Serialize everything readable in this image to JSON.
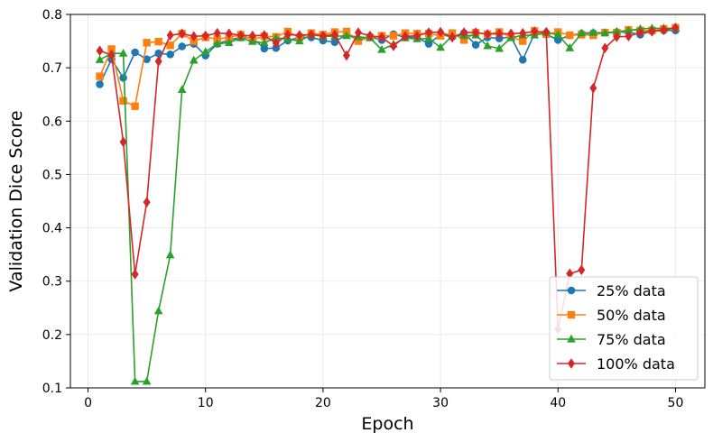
{
  "chart_data": {
    "type": "line",
    "xlabel": "Epoch",
    "ylabel": "Validation Dice Score",
    "xlim": [
      -1.5,
      52.5
    ],
    "ylim": [
      0.1,
      0.8
    ],
    "xticks": [
      0,
      10,
      20,
      30,
      40,
      50
    ],
    "yticks": [
      0.1,
      0.2,
      0.3,
      0.4,
      0.5,
      0.6,
      0.7,
      0.8
    ],
    "grid": true,
    "legend_position": "lower-right",
    "x": [
      1,
      2,
      3,
      4,
      5,
      6,
      7,
      8,
      9,
      10,
      11,
      12,
      13,
      14,
      15,
      16,
      17,
      18,
      19,
      20,
      21,
      22,
      23,
      24,
      25,
      26,
      27,
      28,
      29,
      30,
      31,
      32,
      33,
      34,
      35,
      36,
      37,
      38,
      39,
      40,
      41,
      42,
      43,
      44,
      45,
      46,
      47,
      48,
      49,
      50
    ],
    "series": [
      {
        "name": "25% data",
        "color": "#1f77b4",
        "marker": "circle",
        "values": [
          0.669,
          0.716,
          0.681,
          0.729,
          0.716,
          0.727,
          0.725,
          0.74,
          0.745,
          0.723,
          0.745,
          0.752,
          0.757,
          0.756,
          0.736,
          0.737,
          0.751,
          0.757,
          0.757,
          0.751,
          0.748,
          0.763,
          0.752,
          0.758,
          0.752,
          0.763,
          0.757,
          0.757,
          0.745,
          0.762,
          0.758,
          0.765,
          0.743,
          0.757,
          0.755,
          0.758,
          0.715,
          0.764,
          0.763,
          0.752,
          0.761,
          0.764,
          0.765,
          0.766,
          0.767,
          0.767,
          0.762,
          0.769,
          0.77,
          0.77
        ]
      },
      {
        "name": "50% data",
        "color": "#ff7f0e",
        "marker": "square",
        "values": [
          0.684,
          0.735,
          0.638,
          0.628,
          0.747,
          0.749,
          0.742,
          0.764,
          0.75,
          0.757,
          0.754,
          0.757,
          0.762,
          0.753,
          0.759,
          0.758,
          0.768,
          0.757,
          0.765,
          0.762,
          0.767,
          0.768,
          0.75,
          0.757,
          0.76,
          0.76,
          0.765,
          0.764,
          0.764,
          0.76,
          0.765,
          0.752,
          0.766,
          0.763,
          0.767,
          0.758,
          0.75,
          0.769,
          0.763,
          0.767,
          0.761,
          0.762,
          0.761,
          0.766,
          0.766,
          0.771,
          0.77,
          0.77,
          0.773,
          0.775
        ]
      },
      {
        "name": "75% data",
        "color": "#2ca02c",
        "marker": "triangle",
        "values": [
          0.715,
          0.727,
          0.727,
          0.112,
          0.112,
          0.244,
          0.349,
          0.659,
          0.714,
          0.73,
          0.745,
          0.747,
          0.756,
          0.749,
          0.747,
          0.756,
          0.754,
          0.75,
          0.762,
          0.759,
          0.759,
          0.76,
          0.758,
          0.756,
          0.734,
          0.744,
          0.756,
          0.754,
          0.755,
          0.738,
          0.76,
          0.76,
          0.761,
          0.741,
          0.736,
          0.756,
          0.761,
          0.761,
          0.766,
          0.762,
          0.737,
          0.765,
          0.766,
          0.765,
          0.768,
          0.77,
          0.773,
          0.774,
          0.774,
          0.774
        ]
      },
      {
        "name": "100% data",
        "color": "#d62728",
        "marker": "diamond",
        "values": [
          0.732,
          0.724,
          0.561,
          0.313,
          0.448,
          0.712,
          0.761,
          0.764,
          0.759,
          0.76,
          0.765,
          0.764,
          0.761,
          0.76,
          0.761,
          0.746,
          0.762,
          0.761,
          0.762,
          0.76,
          0.762,
          0.723,
          0.766,
          0.76,
          0.757,
          0.741,
          0.759,
          0.76,
          0.766,
          0.767,
          0.757,
          0.766,
          0.766,
          0.763,
          0.764,
          0.764,
          0.765,
          0.768,
          0.767,
          0.21,
          0.314,
          0.321,
          0.662,
          0.737,
          0.758,
          0.759,
          0.766,
          0.768,
          0.771,
          0.775
        ]
      }
    ]
  }
}
